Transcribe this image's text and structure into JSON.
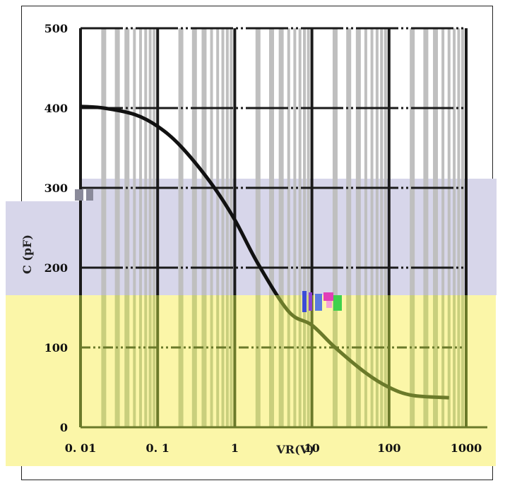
{
  "chart_data": {
    "type": "line",
    "title": "",
    "xlabel": "VR(V)",
    "ylabel": "C (pF)",
    "x_scale": "log",
    "xlim": [
      0.01,
      1000
    ],
    "ylim": [
      0,
      500
    ],
    "grid": true,
    "x_tick_labels": [
      "0. 01",
      "0. 1",
      "1",
      "10",
      "100",
      "1000"
    ],
    "x_tick_values": [
      0.01,
      0.1,
      1,
      10,
      100,
      1000
    ],
    "y_tick_labels": [
      "0",
      "100",
      "200",
      "300",
      "400",
      "500"
    ],
    "y_tick_values": [
      0,
      100,
      200,
      300,
      400,
      500
    ],
    "series": [
      {
        "x": [
          0.01,
          0.02,
          0.05,
          0.1,
          0.2,
          0.5,
          1,
          2,
          5,
          10,
          20,
          50,
          100,
          200,
          600
        ],
        "y": [
          402,
          400,
          392,
          377,
          352,
          305,
          260,
          205,
          145,
          128,
          100,
          68,
          50,
          40,
          37
        ]
      }
    ],
    "colors": {
      "curve_dark": "#111111",
      "curve_overlay": "#6b7a2a",
      "grid_dark": "#1a1a1a",
      "grid_light": "#bfbfbf",
      "band_lavender": "#d7d6ea",
      "band_yellow": "#fbf6a8"
    }
  }
}
